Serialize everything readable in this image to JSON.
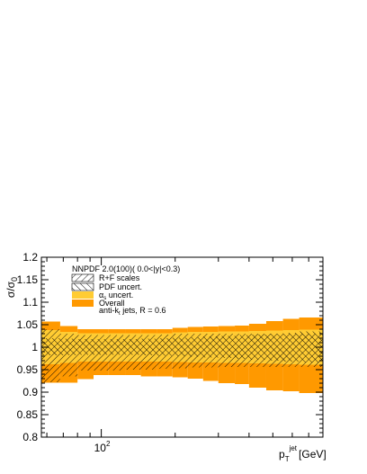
{
  "chart_data": {
    "type": "area",
    "x_scale": "log",
    "xlim": [
      57,
      800
    ],
    "ylim": [
      0.8,
      1.2
    ],
    "ylabel": "σ/σ",
    "ylabel_sub": "0",
    "xlabel_main": "p",
    "xlabel_sub": "T",
    "xlabel_sup": "jet",
    "xlabel_unit": "[GeV]",
    "x_tick_labels": [
      {
        "base": "10",
        "exp": "2",
        "value": 100
      }
    ],
    "y_ticks": [
      "0.8",
      "0.85",
      "0.9",
      "0.95",
      "1",
      "1.05",
      "1.1",
      "1.15",
      "1.2"
    ],
    "y_tick_values": [
      0.8,
      0.85,
      0.9,
      0.95,
      1.0,
      1.05,
      1.1,
      1.15,
      1.2
    ],
    "bin_edges": [
      57,
      68,
      80,
      93,
      107,
      125,
      145,
      168,
      195,
      225,
      260,
      300,
      350,
      400,
      470,
      550,
      640,
      800
    ],
    "series": [
      {
        "name": "Overall",
        "color": "#ff9900",
        "upper": [
          1.057,
          1.047,
          1.04,
          1.04,
          1.04,
          1.04,
          1.04,
          1.04,
          1.043,
          1.045,
          1.046,
          1.047,
          1.048,
          1.052,
          1.058,
          1.063,
          1.066
        ],
        "lower": [
          0.921,
          0.921,
          0.929,
          0.938,
          0.938,
          0.938,
          0.935,
          0.935,
          0.933,
          0.93,
          0.925,
          0.92,
          0.918,
          0.91,
          0.904,
          0.902,
          0.898
        ]
      },
      {
        "name": "αs uncert.",
        "color": "#ffcc33",
        "upper": [
          1.038,
          1.034,
          1.031,
          1.031,
          1.031,
          1.031,
          1.031,
          1.031,
          1.033,
          1.034,
          1.034,
          1.035,
          1.035,
          1.036,
          1.037,
          1.038,
          1.039
        ],
        "lower": [
          0.962,
          0.965,
          0.968,
          0.968,
          0.968,
          0.968,
          0.968,
          0.968,
          0.967,
          0.966,
          0.966,
          0.965,
          0.965,
          0.964,
          0.963,
          0.962,
          0.961
        ]
      },
      {
        "name": "R+F scales",
        "color": "#000000",
        "upper": [
          1.04,
          1.03,
          1.027,
          1.027,
          1.027,
          1.027,
          1.027,
          1.028,
          1.03,
          1.03,
          1.03,
          1.03,
          1.03,
          1.03,
          1.03,
          1.03,
          1.03
        ],
        "lower": [
          0.922,
          0.935,
          0.948,
          0.948,
          0.948,
          0.95,
          0.95,
          0.952,
          0.953,
          0.955,
          0.955,
          0.956,
          0.956,
          0.956,
          0.956,
          0.956,
          0.956
        ]
      },
      {
        "name": "PDF uncert.",
        "color": "#000000",
        "upper": [
          1.02,
          1.019,
          1.018,
          1.018,
          1.018,
          1.018,
          1.019,
          1.02,
          1.021,
          1.022,
          1.024,
          1.025,
          1.027,
          1.028,
          1.03,
          1.032,
          1.035
        ],
        "lower": [
          0.982,
          0.982,
          0.983,
          0.983,
          0.983,
          0.983,
          0.982,
          0.981,
          0.98,
          0.979,
          0.977,
          0.976,
          0.974,
          0.972,
          0.97,
          0.968,
          0.966
        ]
      }
    ],
    "legend": {
      "title": "NNPDF 2.0(100)( 0.0<|y|<0.3)",
      "entries": [
        {
          "label": "R+F scales",
          "style": "hatch-diag"
        },
        {
          "label": "PDF uncert.",
          "style": "hatch-back"
        },
        {
          "label_main": "α",
          "label_sub": "s",
          "label_rest": " uncert.",
          "style": "fill",
          "color": "#ffcc33"
        },
        {
          "label": "Overall",
          "style": "fill",
          "color": "#ff9900"
        }
      ],
      "note_pre": "anti-k",
      "note_sub": "t",
      "note_post": " jets, R = 0.6"
    }
  }
}
